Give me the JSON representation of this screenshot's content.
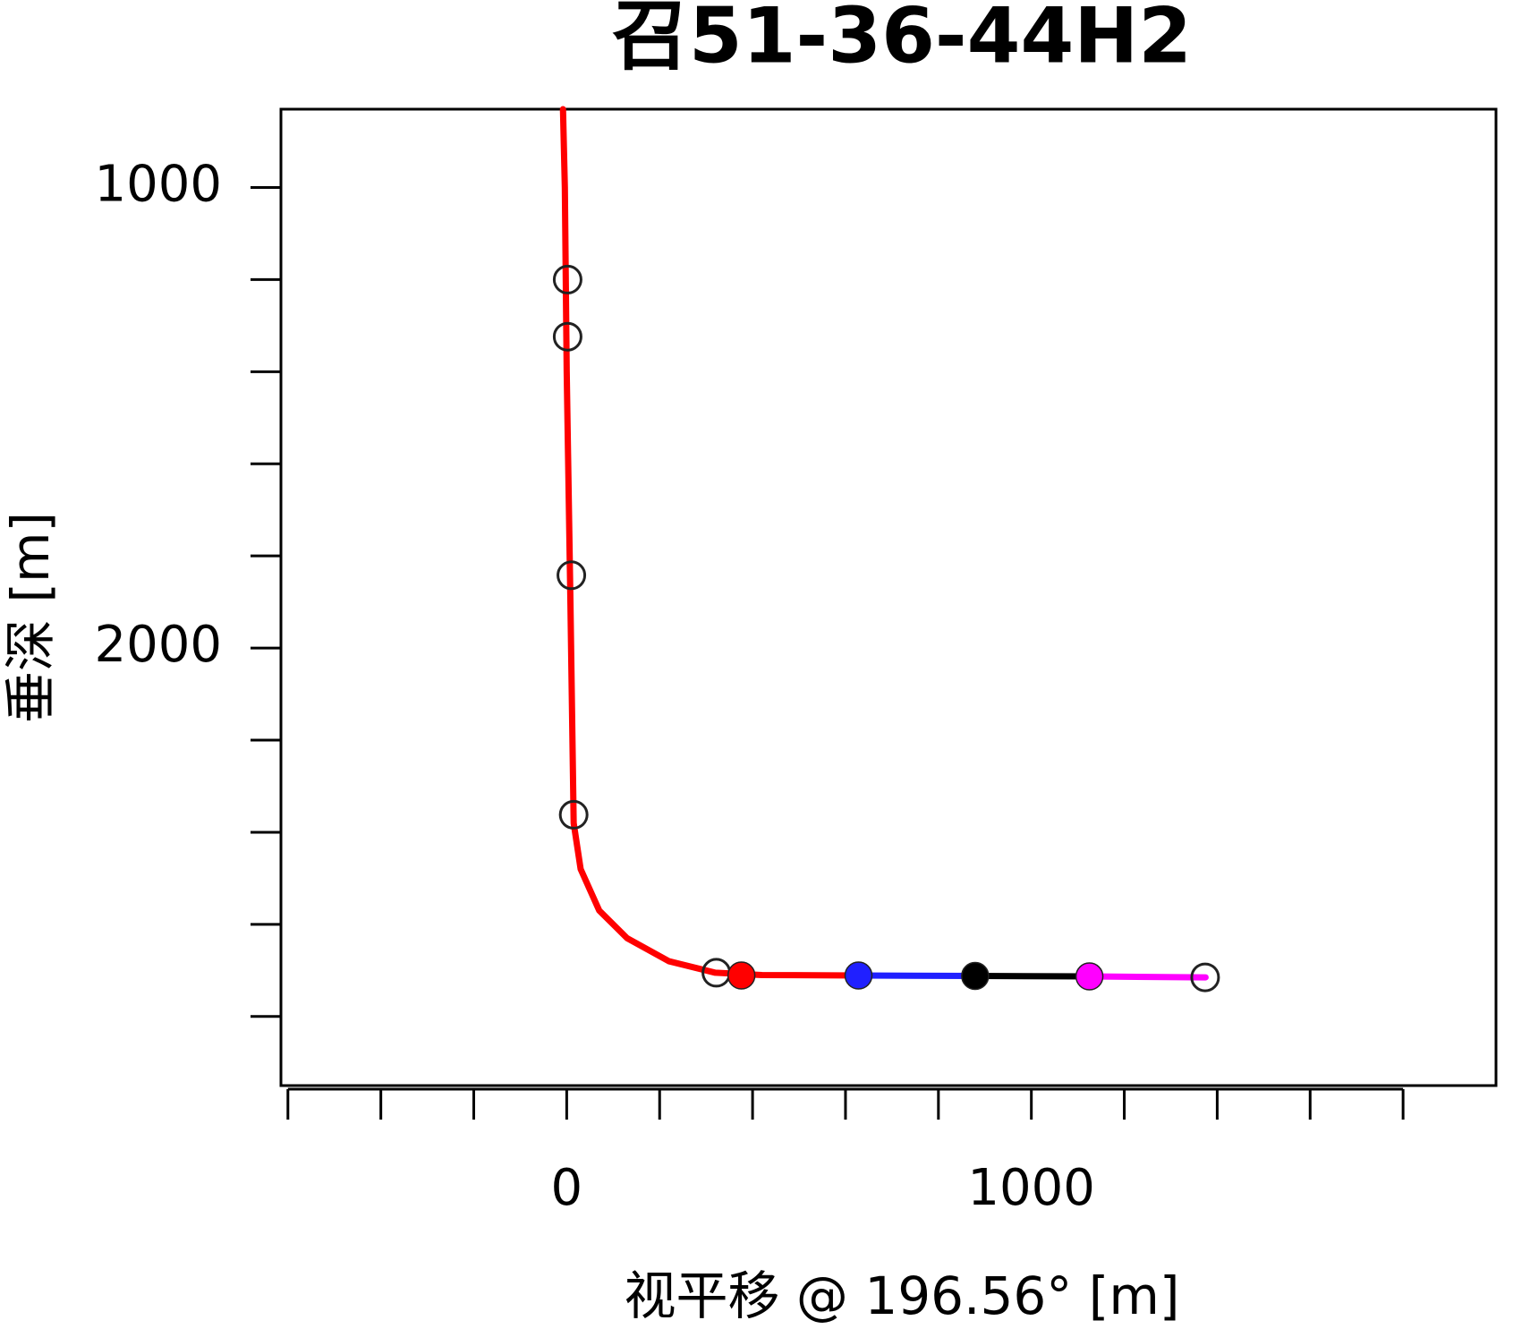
{
  "chart_data": {
    "type": "line",
    "title": "召51-36-44H2",
    "x_label": "视平移 @ 196.56° [m]",
    "y_label": "垂深 [m]",
    "xlim": [
      -615,
      2000
    ],
    "ylim": [
      830,
      2950
    ],
    "y_inverted": true,
    "xticks": [
      0,
      1000
    ],
    "xminor_ticks": [
      -600,
      -400,
      -200,
      200,
      400,
      600,
      800,
      1200,
      1400,
      1600,
      1800
    ],
    "yticks": [
      1000,
      2000
    ],
    "yminor_ticks": [
      1200,
      1400,
      1600,
      1800,
      2200,
      2400,
      2600,
      2800
    ],
    "series": [
      {
        "color": "#ff0000",
        "x": [
          -8,
          -4,
          0,
          8,
          15,
          30,
          70,
          130,
          220,
          320,
          420,
          630
        ],
        "y": [
          830,
          1000,
          1400,
          1900,
          2380,
          2480,
          2570,
          2630,
          2680,
          2705,
          2710,
          2711
        ]
      },
      {
        "color": "#2020ff",
        "x": [
          630,
          880
        ],
        "y": [
          2711,
          2712
        ]
      },
      {
        "color": "#000000",
        "x": [
          880,
          1125
        ],
        "y": [
          2712,
          2713
        ]
      },
      {
        "color": "#ff00ff",
        "x": [
          1125,
          1375
        ],
        "y": [
          2713,
          2715
        ]
      }
    ],
    "markers": {
      "x": [
        2,
        2,
        10,
        15,
        322,
        376,
        628,
        879,
        1125,
        1374
      ],
      "y": [
        1200,
        1324,
        1842,
        2362,
        2705,
        2711,
        2711,
        2712,
        2713,
        2715
      ],
      "fills": [
        null,
        null,
        null,
        null,
        null,
        "#ff0000",
        "#2020ff",
        "#000000",
        "#ff00ff",
        null
      ]
    }
  }
}
